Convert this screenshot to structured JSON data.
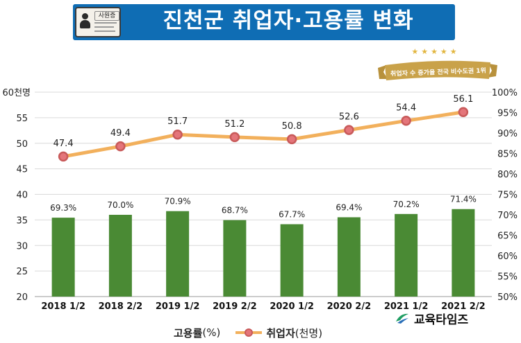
{
  "title": "진천군 취업자·고용률 변화",
  "id_card_label": "사원증",
  "ribbon_text": "취업자 수 증가율 전국 비수도권 1위",
  "stars": "★★★★★",
  "brand": "교육타임즈",
  "legend": {
    "bar_main": "고용률",
    "bar_unit": "(%)",
    "line_main": "취업자",
    "line_unit": "(천명)"
  },
  "colors": {
    "title_bg": "#0f6db4",
    "bar": "#4a8a34",
    "line": "#f2b05c",
    "marker_fill": "#e4757a",
    "marker_stroke": "#c85a5a",
    "grid": "#d9d9d9",
    "ribbon": "#c9a24a"
  },
  "chart_data": {
    "type": "bar+line",
    "categories": [
      "2018 1/2",
      "2018 2/2",
      "2019 1/2",
      "2019 2/2",
      "2020 1/2",
      "2020 2/2",
      "2021 1/2",
      "2021 2/2"
    ],
    "series": [
      {
        "name": "고용률(%)",
        "kind": "bar",
        "axis": "right",
        "values": [
          69.3,
          70.0,
          70.9,
          68.7,
          67.7,
          69.4,
          70.2,
          71.4
        ],
        "labels": [
          "69.3%",
          "70.0%",
          "70.9%",
          "68.7%",
          "67.7%",
          "69.4%",
          "70.2%",
          "71.4%"
        ]
      },
      {
        "name": "취업자(천명)",
        "kind": "line",
        "axis": "left",
        "values": [
          47.4,
          49.4,
          51.7,
          51.2,
          50.8,
          52.6,
          54.4,
          56.1
        ],
        "labels": [
          "47.4",
          "49.4",
          "51.7",
          "51.2",
          "50.8",
          "52.6",
          "54.4",
          "56.1"
        ]
      }
    ],
    "left_axis": {
      "ylim": [
        20,
        60
      ],
      "ticks": [
        20,
        25,
        30,
        35,
        40,
        45,
        50,
        55
      ],
      "top_label": "60천명"
    },
    "right_axis": {
      "ylim": [
        50,
        100
      ],
      "ticks": [
        "50%",
        "55%",
        "60%",
        "65%",
        "70%",
        "75%",
        "80%",
        "85%",
        "90%",
        "95%",
        "100%"
      ]
    },
    "grid": true
  }
}
